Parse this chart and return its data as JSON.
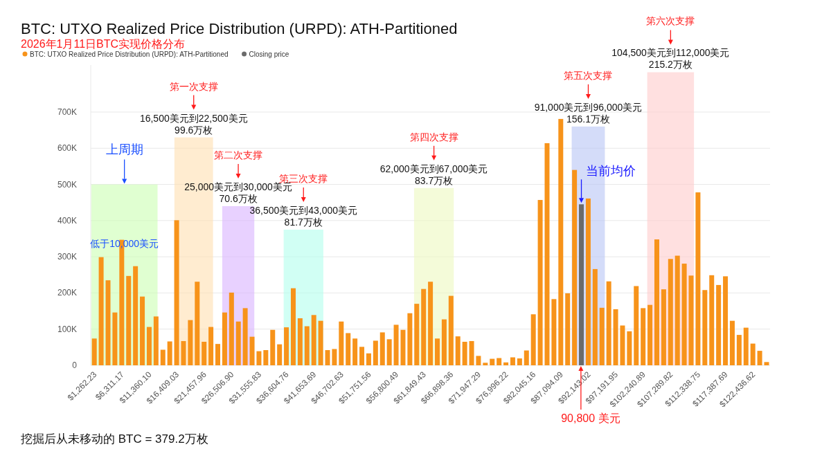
{
  "chart_data": {
    "type": "bar",
    "title": "BTC: UTXO Realized Price Distribution (URPD): ATH-Partitioned",
    "subtitle": "2026年1月11日BTC实现价格分布",
    "x": [
      1262,
      2524,
      3787,
      5049,
      6311,
      7573,
      8836,
      10098,
      11360,
      12622,
      13885,
      15147,
      16409,
      17671,
      18933,
      20196,
      21458,
      22720,
      23982,
      25245,
      26507,
      27769,
      29031,
      30294,
      31556,
      32818,
      34080,
      35342,
      36605,
      37867,
      39129,
      40391,
      41654,
      42916,
      44178,
      45440,
      46703,
      47965,
      49227,
      50489,
      51752,
      53014,
      54276,
      55538,
      56800,
      58063,
      59325,
      60587,
      61849,
      63112,
      64374,
      65636,
      66898,
      68161,
      69423,
      70685,
      71947,
      73209,
      74472,
      75734,
      76996,
      78258,
      79521,
      80783,
      82045,
      83307,
      84570,
      85832,
      87094,
      88356,
      89619,
      90881,
      92143,
      93405,
      94667,
      95930,
      97192,
      98454,
      99716,
      100979,
      102241,
      103503,
      104765,
      106028,
      107290,
      108552,
      109814,
      111076,
      112339,
      113601,
      114863,
      116125,
      117388,
      118650,
      119912,
      121174,
      122437,
      123699,
      124961
    ],
    "series": [
      {
        "name": "BTC: UTXO Realized Price Distribution (URPD): ATH-Partitioned",
        "color": "#f7931a",
        "values": [
          74000,
          299000,
          235000,
          146000,
          347000,
          247000,
          274000,
          190000,
          106000,
          135000,
          43000,
          66000,
          401000,
          67000,
          125000,
          231000,
          65000,
          106000,
          59000,
          146000,
          201000,
          121000,
          158000,
          79000,
          39000,
          42000,
          98000,
          58000,
          105000,
          213000,
          130000,
          108000,
          139000,
          123000,
          42000,
          45000,
          121000,
          89000,
          74000,
          51000,
          33000,
          68000,
          91000,
          72000,
          112000,
          98000,
          144000,
          170000,
          211000,
          231000,
          74000,
          127000,
          192000,
          80000,
          65000,
          67000,
          26000,
          7000,
          18000,
          20000,
          8000,
          22000,
          19000,
          41000,
          141000,
          457000,
          614000,
          183000,
          681000,
          199000,
          540000,
          null,
          461000,
          266000,
          159000,
          232000,
          155000,
          110000,
          94000,
          219000,
          158000,
          167000,
          348000,
          210000,
          294000,
          303000,
          281000,
          248000,
          478000,
          208000,
          249000,
          222000,
          246000,
          123000,
          84000,
          104000,
          60000,
          40000,
          9000
        ]
      },
      {
        "name": "Closing price",
        "color": "#6b6b6b",
        "values": [
          null,
          null,
          null,
          null,
          null,
          null,
          null,
          null,
          null,
          null,
          null,
          null,
          null,
          null,
          null,
          null,
          null,
          null,
          null,
          null,
          null,
          null,
          null,
          null,
          null,
          null,
          null,
          null,
          null,
          null,
          null,
          null,
          null,
          null,
          null,
          null,
          null,
          null,
          null,
          null,
          null,
          null,
          null,
          null,
          null,
          null,
          null,
          null,
          null,
          null,
          null,
          null,
          null,
          null,
          null,
          null,
          null,
          null,
          null,
          null,
          null,
          null,
          null,
          null,
          null,
          null,
          null,
          null,
          null,
          null,
          null,
          445000,
          null,
          null,
          null,
          null,
          null,
          null,
          null,
          null,
          null,
          null,
          null,
          null,
          null,
          null,
          null,
          null,
          null,
          null,
          null,
          null,
          null,
          null,
          null,
          null,
          null,
          null,
          null
        ]
      }
    ],
    "xlim": [
      600,
      125600
    ],
    "xticks": [
      {
        "value": 1262.23,
        "label": "$1,262.23"
      },
      {
        "value": 6311.17,
        "label": "$6,311.17"
      },
      {
        "value": 11360.1,
        "label": "$11,360.10"
      },
      {
        "value": 16409.03,
        "label": "$16,409.03"
      },
      {
        "value": 21457.96,
        "label": "$21,457.96"
      },
      {
        "value": 26506.9,
        "label": "$26,506.90"
      },
      {
        "value": 31555.83,
        "label": "$31,555.83"
      },
      {
        "value": 36604.76,
        "label": "$36,604.76"
      },
      {
        "value": 41653.69,
        "label": "$41,653.69"
      },
      {
        "value": 46702.63,
        "label": "$46,702.63"
      },
      {
        "value": 51751.56,
        "label": "$51,751.56"
      },
      {
        "value": 56800.49,
        "label": "$56,800.49"
      },
      {
        "value": 61849.43,
        "label": "$61,849.43"
      },
      {
        "value": 66898.36,
        "label": "$66,898.36"
      },
      {
        "value": 71947.29,
        "label": "$71,947.29"
      },
      {
        "value": 76996.22,
        "label": "$76,996.22"
      },
      {
        "value": 82045.16,
        "label": "$82,045.16"
      },
      {
        "value": 87094.09,
        "label": "$87,094.09"
      },
      {
        "value": 92143.02,
        "label": "$92,143.02"
      },
      {
        "value": 97191.95,
        "label": "$97,191.95"
      },
      {
        "value": 102240.89,
        "label": "$102,240.89"
      },
      {
        "value": 107289.82,
        "label": "$107,289.82"
      },
      {
        "value": 112338.75,
        "label": "$112,338.75"
      },
      {
        "value": 117387.69,
        "label": "$117,387.69"
      },
      {
        "value": 122436.62,
        "label": "$122,436.62"
      }
    ],
    "ylim": [
      0,
      830000
    ],
    "yticks": [
      {
        "value": 0,
        "label": "0"
      },
      {
        "value": 100000,
        "label": "100K"
      },
      {
        "value": 200000,
        "label": "200K"
      },
      {
        "value": 300000,
        "label": "300K"
      },
      {
        "value": 400000,
        "label": "400K"
      },
      {
        "value": 500000,
        "label": "500K"
      },
      {
        "value": 600000,
        "label": "600K"
      },
      {
        "value": 700000,
        "label": "700K"
      }
    ],
    "grid": "y",
    "legend": "top left",
    "bands": [
      {
        "axis": "x",
        "from": 700,
        "to": 12900,
        "label": "低于10,000美元",
        "color": "#ccffb3"
      },
      {
        "axis": "x",
        "from": 16000,
        "to": 23100,
        "color": "#ffdfb0"
      },
      {
        "axis": "x",
        "from": 24800,
        "to": 30700,
        "color": "#d9b3ff"
      },
      {
        "axis": "x",
        "from": 36100,
        "to": 43400,
        "color": "#b3ffec"
      },
      {
        "axis": "x",
        "from": 60100,
        "to": 67400,
        "color": "#ecf8c0"
      },
      {
        "axis": "x",
        "from": 89100,
        "to": 95200,
        "color": "#b8c4f5"
      },
      {
        "axis": "x",
        "from": 103000,
        "to": 111600,
        "color": "#ffcccc"
      }
    ],
    "annotations": [
      {
        "text": "上周期",
        "x": 6800,
        "y": 500000
      },
      {
        "text": "16,500美元到22,500美元\n99.6万枚",
        "x": 19550,
        "y": 630000
      },
      {
        "text": "25,000美元到30,000美元\n70.6万枚",
        "x": 27750,
        "y": 440000
      },
      {
        "text": "36,500美元到43,000美元\n81.7万枚",
        "x": 39750,
        "y": 375000
      },
      {
        "text": "62,000美元到67,000美元\n83.7万枚",
        "x": 63750,
        "y": 490000
      },
      {
        "text": "91,000美元到96,000美元\n156.1万枚",
        "x": 92150,
        "y": 660000
      },
      {
        "text": "104,500美元到112,000美元\n215.2万枚",
        "x": 107300,
        "y": 810000
      },
      {
        "text": "当前均价",
        "x": 90881,
        "y": 445000
      },
      {
        "text": "90,800 美元",
        "x": 90800,
        "y": 0
      },
      "挖掘后从未移动的 BTC = 379.2万枚",
      "第一次支撑",
      "第二次支撑",
      "第三次支撑",
      "第四次支撑",
      "第五次支撑",
      "第六次支撑"
    ]
  }
}
